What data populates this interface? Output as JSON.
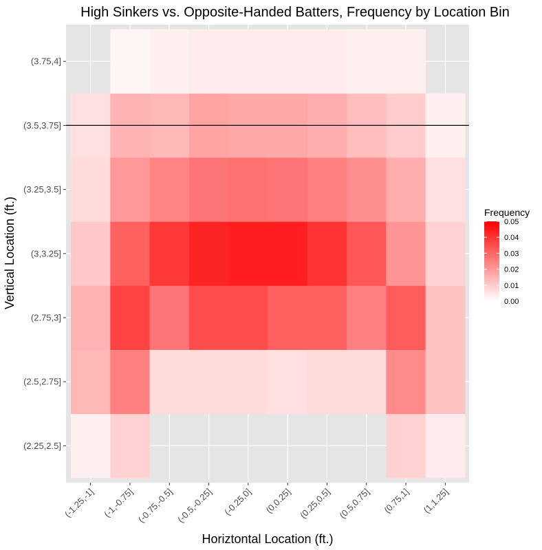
{
  "chart_data": {
    "type": "heatmap",
    "title": "High Sinkers vs. Opposite-Handed Batters, Frequency by Location Bin",
    "xlabel": "Horiztontal Location (ft.)",
    "ylabel": "Vertical Location (ft.)",
    "x_categories": [
      "(-1.25,-1]",
      "(-1,-0.75]",
      "(-0.75,-0.5]",
      "(-0.5,-0.25]",
      "(-0.25,0]",
      "(0,0.25]",
      "(0.25,0.5]",
      "(0.5,0.75]",
      "(0.75,1]",
      "(1,1.25]"
    ],
    "y_categories": [
      "(2.25,2.5]",
      "(2.5,2.75]",
      "(2.75,3]",
      "(3,3.25]",
      "(3.25,3.5]",
      "(3.5,3.75]",
      "(3.75,4]"
    ],
    "values": [
      [
        0.003,
        0.009,
        null,
        null,
        null,
        null,
        null,
        null,
        0.009,
        0.004
      ],
      [
        0.014,
        0.025,
        0.007,
        0.007,
        0.007,
        0.006,
        0.007,
        0.007,
        0.023,
        0.012
      ],
      [
        0.015,
        0.037,
        0.027,
        0.035,
        0.035,
        0.031,
        0.031,
        0.025,
        0.032,
        0.012
      ],
      [
        0.011,
        0.031,
        0.039,
        0.043,
        0.044,
        0.044,
        0.04,
        0.033,
        0.021,
        0.009
      ],
      [
        0.007,
        0.02,
        0.024,
        0.027,
        0.028,
        0.027,
        0.025,
        0.022,
        0.016,
        0.006
      ],
      [
        0.006,
        0.015,
        0.014,
        0.018,
        0.017,
        0.017,
        0.016,
        0.013,
        0.01,
        0.003
      ],
      [
        null,
        0.002,
        0.003,
        0.004,
        0.004,
        0.004,
        0.004,
        0.003,
        0.003,
        null
      ]
    ],
    "legend": {
      "title": "Frequency",
      "ticks": [
        "0.00",
        "0.01",
        "0.02",
        "0.03",
        "0.04",
        "0.05"
      ],
      "min": 0,
      "max": 0.05,
      "low_color": "#ffffff",
      "high_color": "#ff0000",
      "position": "right"
    },
    "reference_line": {
      "orientation": "horizontal",
      "y_category": "(3.5,3.75]"
    },
    "panel_background": "#e5e5e5",
    "grid": true
  }
}
